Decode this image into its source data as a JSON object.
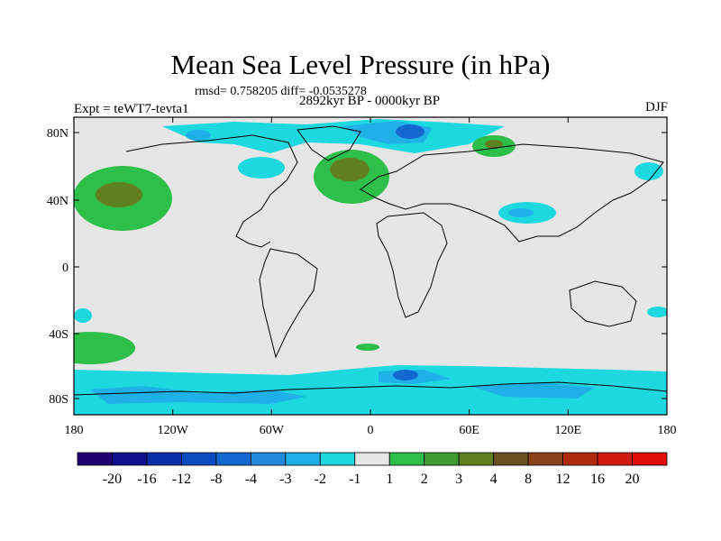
{
  "title": "Mean Sea Level Pressure (in hPa)",
  "stats": "rmsd= 0.758205 diff= -0.0535278",
  "period": "2892kyr BP - 0000kyr BP",
  "experiment": "Expt = teWT7-tevta1",
  "season": "DJF",
  "lat_labels": [
    "80N",
    "40N",
    "0",
    "40S",
    "80S"
  ],
  "lon_labels": [
    "180",
    "120W",
    "60W",
    "0",
    "60E",
    "120E",
    "180"
  ],
  "colorbar": {
    "labels": [
      "-20",
      "-16",
      "-12",
      "-8",
      "-4",
      "-3",
      "-2",
      "-1",
      "1",
      "2",
      "3",
      "4",
      "8",
      "12",
      "16",
      "20"
    ],
    "colors": [
      "#200070",
      "#10108f",
      "#0a30a8",
      "#0a4bbf",
      "#1468cf",
      "#1f8ad8",
      "#1fb0e8",
      "#1ed8e0",
      "#e6e6e6",
      "#2ebf4a",
      "#3f9a30",
      "#5f7f20",
      "#6a5020",
      "#8a4018",
      "#b02a10",
      "#d01a10",
      "#e00e0a"
    ]
  },
  "colors": {
    "land_bg": "#e6e6e6",
    "cyan": "#1ed8e0",
    "light_blue": "#1fb0e8",
    "blue": "#1468cf",
    "green": "#2ebf4a",
    "olive": "#5f7f20"
  }
}
